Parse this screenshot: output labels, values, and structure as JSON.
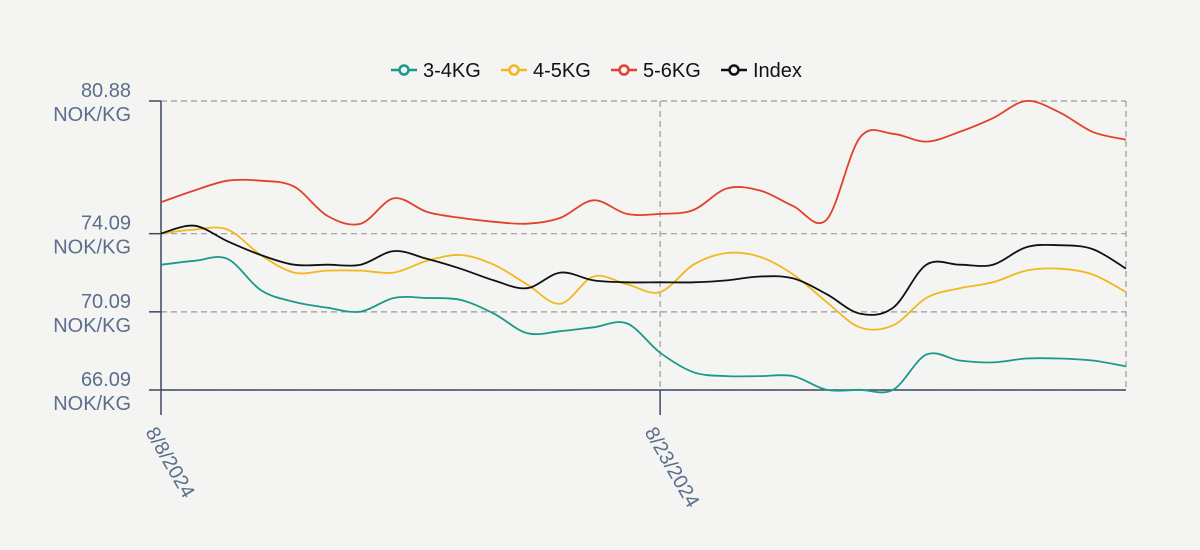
{
  "chart_data": {
    "type": "line",
    "title": "",
    "xlabel": "",
    "ylabel": "",
    "x": [
      "8/8/2024",
      "8/9/2024",
      "8/10/2024",
      "8/11/2024",
      "8/12/2024",
      "8/13/2024",
      "8/14/2024",
      "8/15/2024",
      "8/16/2024",
      "8/17/2024",
      "8/18/2024",
      "8/19/2024",
      "8/20/2024",
      "8/21/2024",
      "8/22/2024",
      "8/23/2024",
      "8/24/2024",
      "8/25/2024",
      "8/26/2024",
      "8/27/2024",
      "8/28/2024",
      "8/29/2024",
      "8/30/2024",
      "8/31/2024",
      "9/1/2024",
      "9/2/2024",
      "9/3/2024",
      "9/4/2024",
      "9/5/2024",
      "9/6/2024"
    ],
    "x_ticks": [
      "8/8/2024",
      "8/23/2024"
    ],
    "y_ticks": [
      {
        "value": 66.09,
        "label": "66.09",
        "unit": "NOK/KG"
      },
      {
        "value": 70.09,
        "label": "70.09",
        "unit": "NOK/KG"
      },
      {
        "value": 74.09,
        "label": "74.09",
        "unit": "NOK/KG"
      },
      {
        "value": 80.88,
        "label": "80.88",
        "unit": "NOK/KG"
      }
    ],
    "ylim": [
      66.09,
      80.88
    ],
    "grid": true,
    "legend_position": "top-center",
    "series": [
      {
        "name": "3-4KG",
        "color": "#1a9a8a",
        "values": [
          72.5,
          72.7,
          72.8,
          71.2,
          70.6,
          70.3,
          70.1,
          70.8,
          70.8,
          70.7,
          70.0,
          69.0,
          69.1,
          69.3,
          69.5,
          68.0,
          67.0,
          66.8,
          66.8,
          66.8,
          66.1,
          66.1,
          66.1,
          67.9,
          67.6,
          67.5,
          67.7,
          67.7,
          67.6,
          67.3
        ]
      },
      {
        "name": "4-5KG",
        "color": "#f2b81f",
        "values": [
          74.1,
          74.3,
          74.3,
          73.0,
          72.1,
          72.2,
          72.2,
          72.1,
          72.7,
          73.0,
          72.5,
          71.5,
          70.5,
          71.9,
          71.5,
          71.1,
          72.5,
          73.1,
          72.9,
          72.0,
          70.6,
          69.3,
          69.4,
          70.8,
          71.3,
          71.6,
          72.2,
          72.3,
          72.0,
          71.1
        ]
      },
      {
        "name": "5-6KG",
        "color": "#e2412c",
        "values": [
          75.7,
          76.3,
          76.8,
          76.8,
          76.5,
          75.0,
          74.6,
          75.9,
          75.2,
          74.9,
          74.7,
          74.6,
          74.9,
          75.8,
          75.1,
          75.1,
          75.3,
          76.4,
          76.3,
          75.5,
          74.8,
          79.0,
          79.2,
          78.8,
          79.3,
          80.0,
          80.88,
          80.3,
          79.3,
          78.9
        ]
      },
      {
        "name": "Index",
        "color": "#111111",
        "values": [
          74.1,
          74.5,
          73.7,
          73.0,
          72.5,
          72.5,
          72.5,
          73.2,
          72.8,
          72.3,
          71.7,
          71.3,
          72.1,
          71.7,
          71.6,
          71.6,
          71.6,
          71.7,
          71.9,
          71.8,
          71.0,
          70.0,
          70.3,
          72.5,
          72.5,
          72.5,
          73.4,
          73.5,
          73.3,
          72.3
        ]
      }
    ]
  }
}
